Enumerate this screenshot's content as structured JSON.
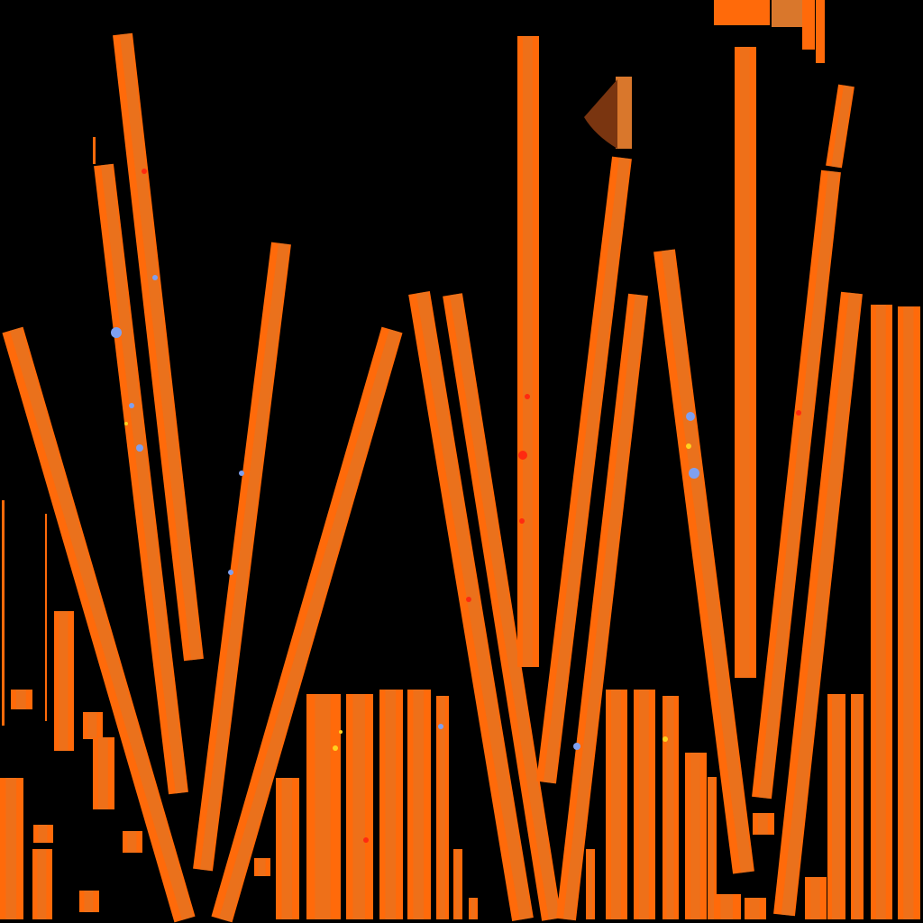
{
  "texture": {
    "kind": "wood-plank-texture-atlas",
    "background_color": "#000000",
    "colors": {
      "orange": "#ff6a0a",
      "wood": "#d9772c",
      "wood_dark": "#b3601f",
      "dark_brown": "#7a3510",
      "splatter_red": "#ff2a10",
      "splatter_blue": "#7fa0f0",
      "splatter_yellow": "#ffd21e"
    }
  }
}
